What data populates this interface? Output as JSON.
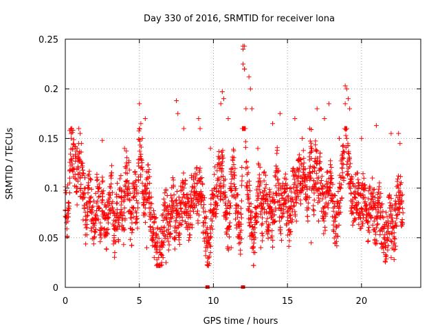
{
  "chart_data": {
    "type": "scatter",
    "title": "Day 330 of 2016, SRMTID for receiver lona",
    "xlabel": "GPS time / hours",
    "ylabel": "SRMTID / TECUs",
    "xlim": [
      0,
      24
    ],
    "ylim": [
      0,
      0.25
    ],
    "x_ticks": [
      0,
      5,
      10,
      15,
      20
    ],
    "x_tick_labels": [
      "0",
      "5",
      "10",
      "15",
      "20"
    ],
    "y_ticks": [
      0,
      0.05,
      0.1,
      0.15,
      0.2,
      0.25
    ],
    "y_tick_labels": [
      "0",
      "0.05",
      "0.1",
      "0.15",
      "0.2",
      "0.25"
    ],
    "grid": true,
    "marker": "+",
    "color": "#ff0000",
    "series": [
      {
        "name": "SRMTID",
        "x": [
          0.0,
          0.1,
          0.2,
          0.3,
          0.4,
          0.5,
          0.6,
          0.7,
          0.8,
          0.9,
          1.0,
          1.1,
          1.2,
          1.3,
          1.4,
          1.5,
          1.6,
          1.7,
          1.8,
          1.9,
          2.0,
          2.1,
          2.2,
          2.3,
          2.4,
          2.5,
          2.6,
          2.7,
          2.8,
          2.9,
          3.0,
          3.1,
          3.2,
          3.3,
          3.4,
          3.5,
          3.6,
          3.7,
          3.8,
          3.9,
          4.0,
          4.1,
          4.2,
          4.3,
          4.4,
          4.5,
          4.6,
          4.7,
          4.8,
          4.9,
          5.0,
          5.1,
          5.2,
          5.3,
          5.4,
          5.5,
          5.6,
          5.7,
          5.8,
          5.9,
          6.0,
          6.1,
          6.2,
          6.3,
          6.4,
          6.5,
          6.6,
          6.7,
          6.8,
          6.9,
          7.0,
          7.1,
          7.2,
          7.3,
          7.4,
          7.5,
          7.6,
          7.7,
          7.8,
          7.9,
          8.0,
          8.1,
          8.2,
          8.3,
          8.4,
          8.5,
          8.6,
          8.7,
          8.8,
          8.9,
          9.0,
          9.1,
          9.2,
          9.3,
          9.4,
          9.5,
          9.6,
          9.7,
          9.8,
          9.9,
          10.0,
          10.1,
          10.2,
          10.3,
          10.4,
          10.5,
          10.6,
          10.7,
          10.8,
          10.9,
          11.0,
          11.1,
          11.2,
          11.3,
          11.4,
          11.5,
          11.6,
          11.7,
          11.8,
          11.9,
          12.0,
          12.1,
          12.2,
          12.3,
          12.4,
          12.5,
          12.6,
          12.7,
          12.8,
          12.9,
          13.0,
          13.1,
          13.2,
          13.3,
          13.4,
          13.5,
          13.6,
          13.7,
          13.8,
          13.9,
          14.0,
          14.1,
          14.2,
          14.3,
          14.4,
          14.5,
          14.6,
          14.7,
          14.8,
          14.9,
          15.0,
          15.1,
          15.2,
          15.3,
          15.4,
          15.5,
          15.6,
          15.7,
          15.8,
          15.9,
          16.0,
          16.1,
          16.2,
          16.3,
          16.4,
          16.5,
          16.6,
          16.7,
          16.8,
          16.9,
          17.0,
          17.1,
          17.2,
          17.3,
          17.4,
          17.5,
          17.6,
          17.7,
          17.8,
          17.9,
          18.0,
          18.1,
          18.2,
          18.3,
          18.4,
          18.5,
          18.6,
          18.7,
          18.8,
          18.9,
          19.0,
          19.1,
          19.2,
          19.3,
          19.4,
          19.5,
          19.6,
          19.7,
          19.8,
          19.9,
          20.0,
          20.1,
          20.2,
          20.3,
          20.4,
          20.5,
          20.6,
          20.7,
          20.8,
          20.9,
          21.0,
          21.1,
          21.2,
          21.3,
          21.4,
          21.5,
          21.6,
          21.7,
          21.8,
          21.9,
          22.0,
          22.1,
          22.2,
          22.3,
          22.4,
          22.5,
          22.6,
          22.7,
          22.8
        ],
        "y": [
          0.078,
          0.07,
          0.085,
          0.11,
          0.155,
          0.14,
          0.12,
          0.13,
          0.1,
          0.145,
          0.11,
          0.125,
          0.09,
          0.095,
          0.06,
          0.08,
          0.1,
          0.09,
          0.075,
          0.065,
          0.07,
          0.085,
          0.1,
          0.08,
          0.06,
          0.095,
          0.075,
          0.07,
          0.055,
          0.065,
          0.09,
          0.11,
          0.08,
          0.05,
          0.06,
          0.085,
          0.07,
          0.1,
          0.09,
          0.06,
          0.08,
          0.12,
          0.095,
          0.105,
          0.07,
          0.065,
          0.09,
          0.1,
          0.075,
          0.085,
          0.16,
          0.12,
          0.105,
          0.09,
          0.08,
          0.1,
          0.11,
          0.09,
          0.07,
          0.06,
          0.065,
          0.05,
          0.04,
          0.03,
          0.035,
          0.045,
          0.06,
          0.07,
          0.08,
          0.065,
          0.055,
          0.07,
          0.09,
          0.085,
          0.06,
          0.07,
          0.075,
          0.065,
          0.08,
          0.09,
          0.1,
          0.085,
          0.075,
          0.07,
          0.06,
          0.09,
          0.08,
          0.1,
          0.11,
          0.095,
          0.085,
          0.12,
          0.09,
          0.08,
          0.07,
          0.05,
          0.04,
          0.045,
          0.06,
          0.075,
          0.09,
          0.1,
          0.085,
          0.11,
          0.12,
          0.1,
          0.13,
          0.095,
          0.085,
          0.07,
          0.06,
          0.08,
          0.1,
          0.12,
          0.11,
          0.09,
          0.075,
          0.065,
          0.05,
          0.07,
          0.24,
          0.22,
          0.12,
          0.1,
          0.085,
          0.07,
          0.055,
          0.04,
          0.06,
          0.08,
          0.095,
          0.11,
          0.085,
          0.07,
          0.09,
          0.1,
          0.075,
          0.06,
          0.08,
          0.07,
          0.065,
          0.085,
          0.095,
          0.12,
          0.1,
          0.08,
          0.07,
          0.09,
          0.11,
          0.085,
          0.075,
          0.065,
          0.08,
          0.09,
          0.1,
          0.095,
          0.085,
          0.11,
          0.12,
          0.105,
          0.1,
          0.13,
          0.11,
          0.09,
          0.085,
          0.12,
          0.14,
          0.1,
          0.095,
          0.13,
          0.11,
          0.09,
          0.12,
          0.1,
          0.08,
          0.075,
          0.085,
          0.1,
          0.095,
          0.11,
          0.09,
          0.08,
          0.07,
          0.06,
          0.075,
          0.085,
          0.1,
          0.12,
          0.13,
          0.185,
          0.15,
          0.12,
          0.105,
          0.095,
          0.085,
          0.08,
          0.09,
          0.1,
          0.085,
          0.075,
          0.08,
          0.09,
          0.085,
          0.07,
          0.065,
          0.075,
          0.085,
          0.095,
          0.08,
          0.07,
          0.06,
          0.075,
          0.085,
          0.07,
          0.06,
          0.05,
          0.045,
          0.055,
          0.065,
          0.08,
          0.07,
          0.06,
          0.055,
          0.065,
          0.08,
          0.1,
          0.09,
          0.085,
          0.075
        ],
        "extra_points": [
          [
            0.3,
            0.158
          ],
          [
            0.4,
            0.15
          ],
          [
            0.8,
            0.14
          ],
          [
            1.0,
            0.155
          ],
          [
            2.5,
            0.148
          ],
          [
            4.0,
            0.14
          ],
          [
            5.0,
            0.185
          ],
          [
            5.1,
            0.165
          ],
          [
            5.2,
            0.15
          ],
          [
            5.4,
            0.17
          ],
          [
            6.6,
            0.03
          ],
          [
            6.8,
            0.025
          ],
          [
            7.5,
            0.188
          ],
          [
            7.6,
            0.175
          ],
          [
            8.0,
            0.16
          ],
          [
            9.0,
            0.17
          ],
          [
            9.1,
            0.16
          ],
          [
            9.8,
            0.14
          ],
          [
            10.5,
            0.185
          ],
          [
            10.6,
            0.197
          ],
          [
            10.7,
            0.19
          ],
          [
            11.0,
            0.17
          ],
          [
            12.0,
            0.243
          ],
          [
            12.1,
            0.243
          ],
          [
            12.0,
            0.225
          ],
          [
            12.1,
            0.22
          ],
          [
            12.2,
            0.18
          ],
          [
            12.4,
            0.212
          ],
          [
            12.5,
            0.2
          ],
          [
            12.6,
            0.18
          ],
          [
            13.0,
            0.14
          ],
          [
            14.0,
            0.165
          ],
          [
            14.5,
            0.175
          ],
          [
            15.5,
            0.17
          ],
          [
            16.0,
            0.15
          ],
          [
            16.5,
            0.16
          ],
          [
            17.0,
            0.18
          ],
          [
            17.5,
            0.17
          ],
          [
            17.8,
            0.185
          ],
          [
            18.5,
            0.15
          ],
          [
            18.9,
            0.203
          ],
          [
            19.0,
            0.2
          ],
          [
            19.1,
            0.19
          ],
          [
            19.2,
            0.18
          ],
          [
            20.0,
            0.15
          ],
          [
            21.0,
            0.163
          ],
          [
            22.0,
            0.155
          ],
          [
            22.5,
            0.155
          ],
          [
            22.6,
            0.145
          ],
          [
            5.5,
            0.04
          ],
          [
            6.0,
            0.03
          ],
          [
            6.5,
            0.025
          ],
          [
            9.7,
            0.03
          ],
          [
            9.8,
            0.035
          ],
          [
            11.2,
            0.04
          ],
          [
            12.8,
            0.035
          ],
          [
            13.2,
            0.04
          ],
          [
            16.6,
            0.045
          ],
          [
            20.9,
            0.045
          ],
          [
            21.5,
            0.035
          ],
          [
            21.6,
            0.04
          ],
          [
            22.0,
            0.03
          ],
          [
            22.2,
            0.028
          ]
        ]
      }
    ],
    "zero_markers_x": [
      9.6,
      12.0
    ]
  }
}
